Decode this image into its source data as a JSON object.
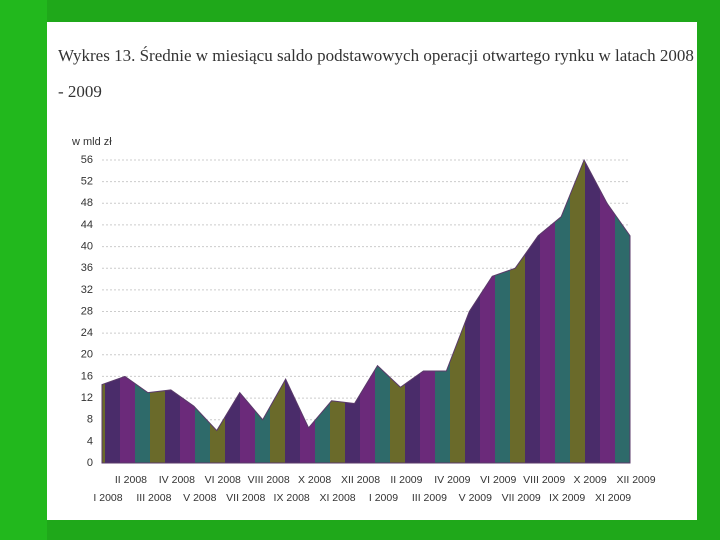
{
  "chart_data": {
    "type": "area",
    "title": "Wykres 13. Średnie w miesiącu saldo podstawowych operacji otwartego rynku w latach 2008 - 2009",
    "y_label": "w mld zł",
    "categories": [
      "I 2008",
      "II 2008",
      "III 2008",
      "IV 2008",
      "V 2008",
      "VI 2008",
      "VII 2008",
      "VIII 2008",
      "IX 2008",
      "X 2008",
      "XI 2008",
      "XII 2008",
      "I 2009",
      "II 2009",
      "III 2009",
      "IV 2009",
      "V 2009",
      "VI 2009",
      "VII 2009",
      "VIII 2009",
      "IX 2009",
      "X 2009",
      "XI 2009",
      "XII 2009"
    ],
    "values": [
      14.5,
      16,
      13,
      13.5,
      10.5,
      6,
      13,
      8,
      15.5,
      6.5,
      11.5,
      11,
      18,
      14,
      17,
      17,
      28,
      34.5,
      36,
      42,
      45.5,
      56,
      48,
      42
    ],
    "ylim": [
      0,
      56
    ],
    "yticks": [
      0,
      4,
      8,
      12,
      16,
      20,
      24,
      28,
      32,
      36,
      40,
      44,
      48,
      52,
      56
    ],
    "grid": true
  }
}
